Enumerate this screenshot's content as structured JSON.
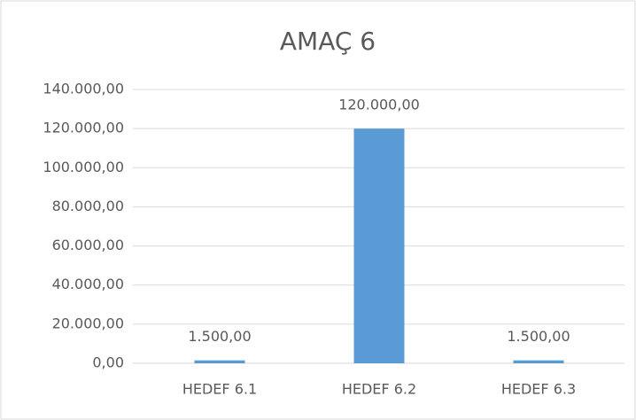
{
  "chart_data": {
    "type": "bar",
    "title": "AMAÇ 6",
    "categories": [
      "HEDEF 6.1",
      "HEDEF 6.2",
      "HEDEF 6.3"
    ],
    "values": [
      1500,
      120000,
      1500
    ],
    "value_labels": [
      "1.500,00",
      "120.000,00",
      "1.500,00"
    ],
    "color": "#5b9bd5",
    "ylim": [
      0,
      140000
    ],
    "yticks": [
      {
        "value": 0,
        "label": "0,00"
      },
      {
        "value": 20000,
        "label": "20.000,00"
      },
      {
        "value": 40000,
        "label": "40.000,00"
      },
      {
        "value": 60000,
        "label": "60.000,00"
      },
      {
        "value": 80000,
        "label": "80.000,00"
      },
      {
        "value": 100000,
        "label": "100.000,00"
      },
      {
        "value": 120000,
        "label": "120.000,00"
      },
      {
        "value": 140000,
        "label": "140.000,00"
      }
    ],
    "grid": true
  }
}
